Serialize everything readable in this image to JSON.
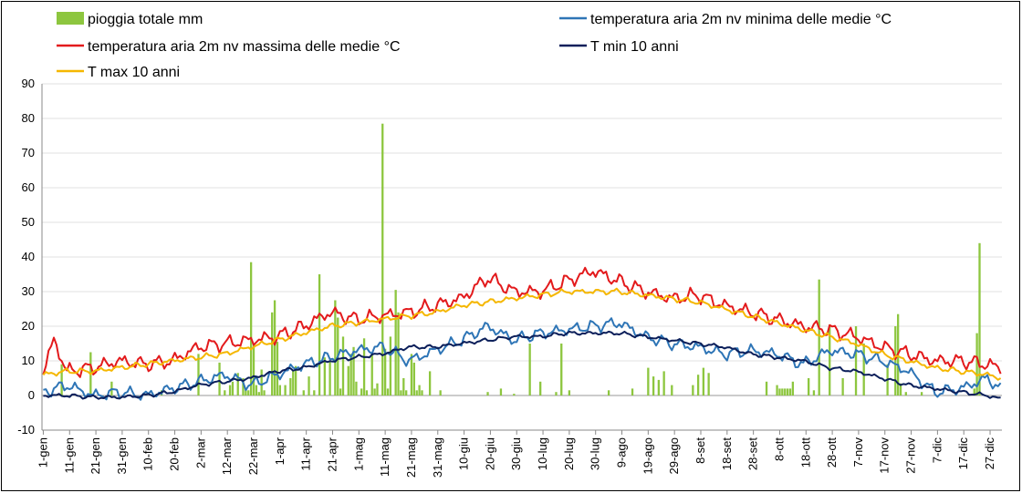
{
  "chart_data": {
    "type": "bar+line",
    "title": "",
    "xlabel": "",
    "ylabel": "",
    "ylim": [
      -10,
      90
    ],
    "yticks": [
      -10,
      0,
      10,
      20,
      30,
      40,
      50,
      60,
      70,
      80,
      90
    ],
    "grid": "horizontal",
    "legend_position": "top",
    "x_tick_labels": [
      "1-gen",
      "11-gen",
      "21-gen",
      "31-gen",
      "10-feb",
      "20-feb",
      "2-mar",
      "12-mar",
      "22-mar",
      "1-apr",
      "11-apr",
      "21-apr",
      "1-mag",
      "11-mag",
      "21-mag",
      "31-mag",
      "10-giu",
      "20-giu",
      "30-giu",
      "10-lug",
      "20-lug",
      "30-lug",
      "9-ago",
      "19-ago",
      "29-ago",
      "8-set",
      "18-set",
      "28-set",
      "8-ott",
      "18-ott",
      "28-ott",
      "7-nov",
      "17-nov",
      "27-nov",
      "7-dic",
      "17-dic",
      "27-dic"
    ],
    "series": [
      {
        "name": "pioggia totale mm",
        "kind": "bar",
        "color": "#8dc63f",
        "days": [
          8,
          19,
          27,
          46,
          60,
          68,
          70,
          72,
          73,
          75,
          77,
          78,
          79,
          80,
          81,
          82,
          83,
          84,
          85,
          88,
          89,
          90,
          91,
          93,
          95,
          96,
          97,
          100,
          102,
          104,
          106,
          108,
          110,
          112,
          113,
          114,
          115,
          117,
          118,
          119,
          120,
          122,
          123,
          124,
          126,
          127,
          128,
          130,
          131,
          132,
          133,
          135,
          136,
          137,
          138,
          139,
          141,
          142,
          143,
          144,
          145,
          148,
          152,
          170,
          175,
          180,
          186,
          190,
          196,
          198,
          201,
          216,
          225,
          231,
          233,
          235,
          237,
          240,
          248,
          250,
          252,
          254,
          276,
          280,
          281,
          282,
          283,
          284,
          285,
          286,
          292,
          294,
          296,
          300,
          305,
          310,
          313,
          322,
          325,
          326,
          327,
          329,
          335,
          355,
          356,
          357
        ],
        "values": [
          9,
          12.5,
          4,
          1.5,
          12,
          9.5,
          1.5,
          3,
          4,
          6.5,
          5,
          1.5,
          1.5,
          38.5,
          15,
          3,
          1,
          7.5,
          1.5,
          24,
          27.5,
          15.5,
          3,
          3,
          5,
          7,
          8.5,
          1.5,
          5.5,
          1.5,
          35,
          11,
          10,
          27.5,
          22.5,
          2,
          17,
          8.5,
          12,
          14,
          4,
          2,
          16.5,
          1.5,
          12,
          2,
          3.5,
          78.5,
          13.5,
          2,
          17,
          30.5,
          24,
          1.5,
          5,
          1.5,
          12,
          9.5,
          1.5,
          3,
          1.5,
          7,
          1.5,
          1,
          2,
          0.5,
          15,
          4,
          1,
          15,
          1.5,
          1.5,
          2,
          8,
          5.5,
          4.5,
          7,
          3,
          3,
          6,
          8,
          6.5,
          4,
          3,
          2,
          2,
          2,
          2,
          2,
          4,
          5,
          1.5,
          33.5,
          20.5,
          5,
          20,
          15,
          9,
          20,
          23.5,
          3.5,
          1,
          1,
          2,
          18,
          44
        ]
      },
      {
        "name": "temperatura aria 2m nv minima delle medie °C",
        "kind": "line",
        "color": "#2e75b6",
        "x": [
          1,
          10,
          20,
          30,
          40,
          50,
          60,
          70,
          80,
          90,
          100,
          110,
          120,
          130,
          140,
          150,
          160,
          170,
          180,
          190,
          200,
          210,
          220,
          230,
          240,
          250,
          260,
          270,
          280,
          290,
          300,
          310,
          320,
          330,
          340,
          350,
          360,
          365
        ],
        "y": [
          1,
          3,
          0,
          1,
          0,
          2,
          4,
          6,
          3,
          6,
          9,
          11,
          13,
          14,
          10,
          13,
          16,
          20,
          16,
          18,
          19,
          20,
          21,
          17,
          15,
          14,
          12,
          13,
          12,
          9,
          13,
          12,
          10,
          7,
          1,
          2,
          5,
          2
        ]
      },
      {
        "name": "temperatura aria 2m nv massima delle medie °C",
        "kind": "line",
        "color": "#e31a1c",
        "x": [
          1,
          5,
          10,
          20,
          30,
          40,
          50,
          60,
          70,
          80,
          90,
          100,
          110,
          120,
          130,
          140,
          150,
          160,
          170,
          180,
          190,
          200,
          210,
          220,
          230,
          240,
          250,
          260,
          270,
          280,
          290,
          300,
          310,
          320,
          330,
          340,
          350,
          360,
          365
        ],
        "y": [
          7,
          16,
          7,
          8,
          10,
          9,
          10,
          14,
          15,
          16,
          17,
          20,
          24,
          22,
          23,
          24,
          26,
          28,
          34,
          30,
          30,
          33,
          36,
          33,
          30,
          28,
          29,
          26,
          24,
          22,
          20,
          19,
          17,
          14,
          12,
          10,
          10,
          9,
          8
        ]
      },
      {
        "name": "T min 10 anni",
        "kind": "line",
        "color": "#0b1f5a",
        "x": [
          1,
          10,
          20,
          30,
          40,
          50,
          60,
          70,
          80,
          90,
          100,
          110,
          120,
          130,
          140,
          150,
          160,
          170,
          180,
          190,
          200,
          210,
          220,
          230,
          240,
          250,
          260,
          270,
          280,
          290,
          300,
          310,
          320,
          330,
          340,
          350,
          360,
          365
        ],
        "y": [
          0,
          0,
          -0.5,
          -0.5,
          0,
          1,
          3,
          4,
          5,
          7,
          8,
          10,
          11,
          12,
          14,
          14,
          15,
          16,
          17,
          17,
          18,
          18,
          18,
          17,
          16,
          15,
          14,
          12,
          11,
          10,
          8,
          7,
          5,
          3,
          2,
          1,
          0,
          -1
        ]
      },
      {
        "name": "T max 10 anni",
        "kind": "line",
        "color": "#f5b700",
        "x": [
          1,
          10,
          20,
          30,
          40,
          50,
          60,
          70,
          80,
          90,
          100,
          110,
          120,
          130,
          140,
          150,
          160,
          170,
          180,
          190,
          200,
          210,
          220,
          230,
          240,
          250,
          260,
          270,
          280,
          290,
          300,
          310,
          320,
          330,
          340,
          350,
          360,
          365
        ],
        "y": [
          6,
          7,
          7,
          8,
          9,
          10,
          11,
          12,
          14,
          16,
          18,
          20,
          21,
          22,
          23,
          24,
          26,
          27,
          28,
          29,
          30,
          30,
          30,
          29,
          28,
          27,
          25,
          23,
          21,
          19,
          17,
          15,
          12,
          10,
          8,
          7,
          6,
          5
        ]
      }
    ]
  }
}
